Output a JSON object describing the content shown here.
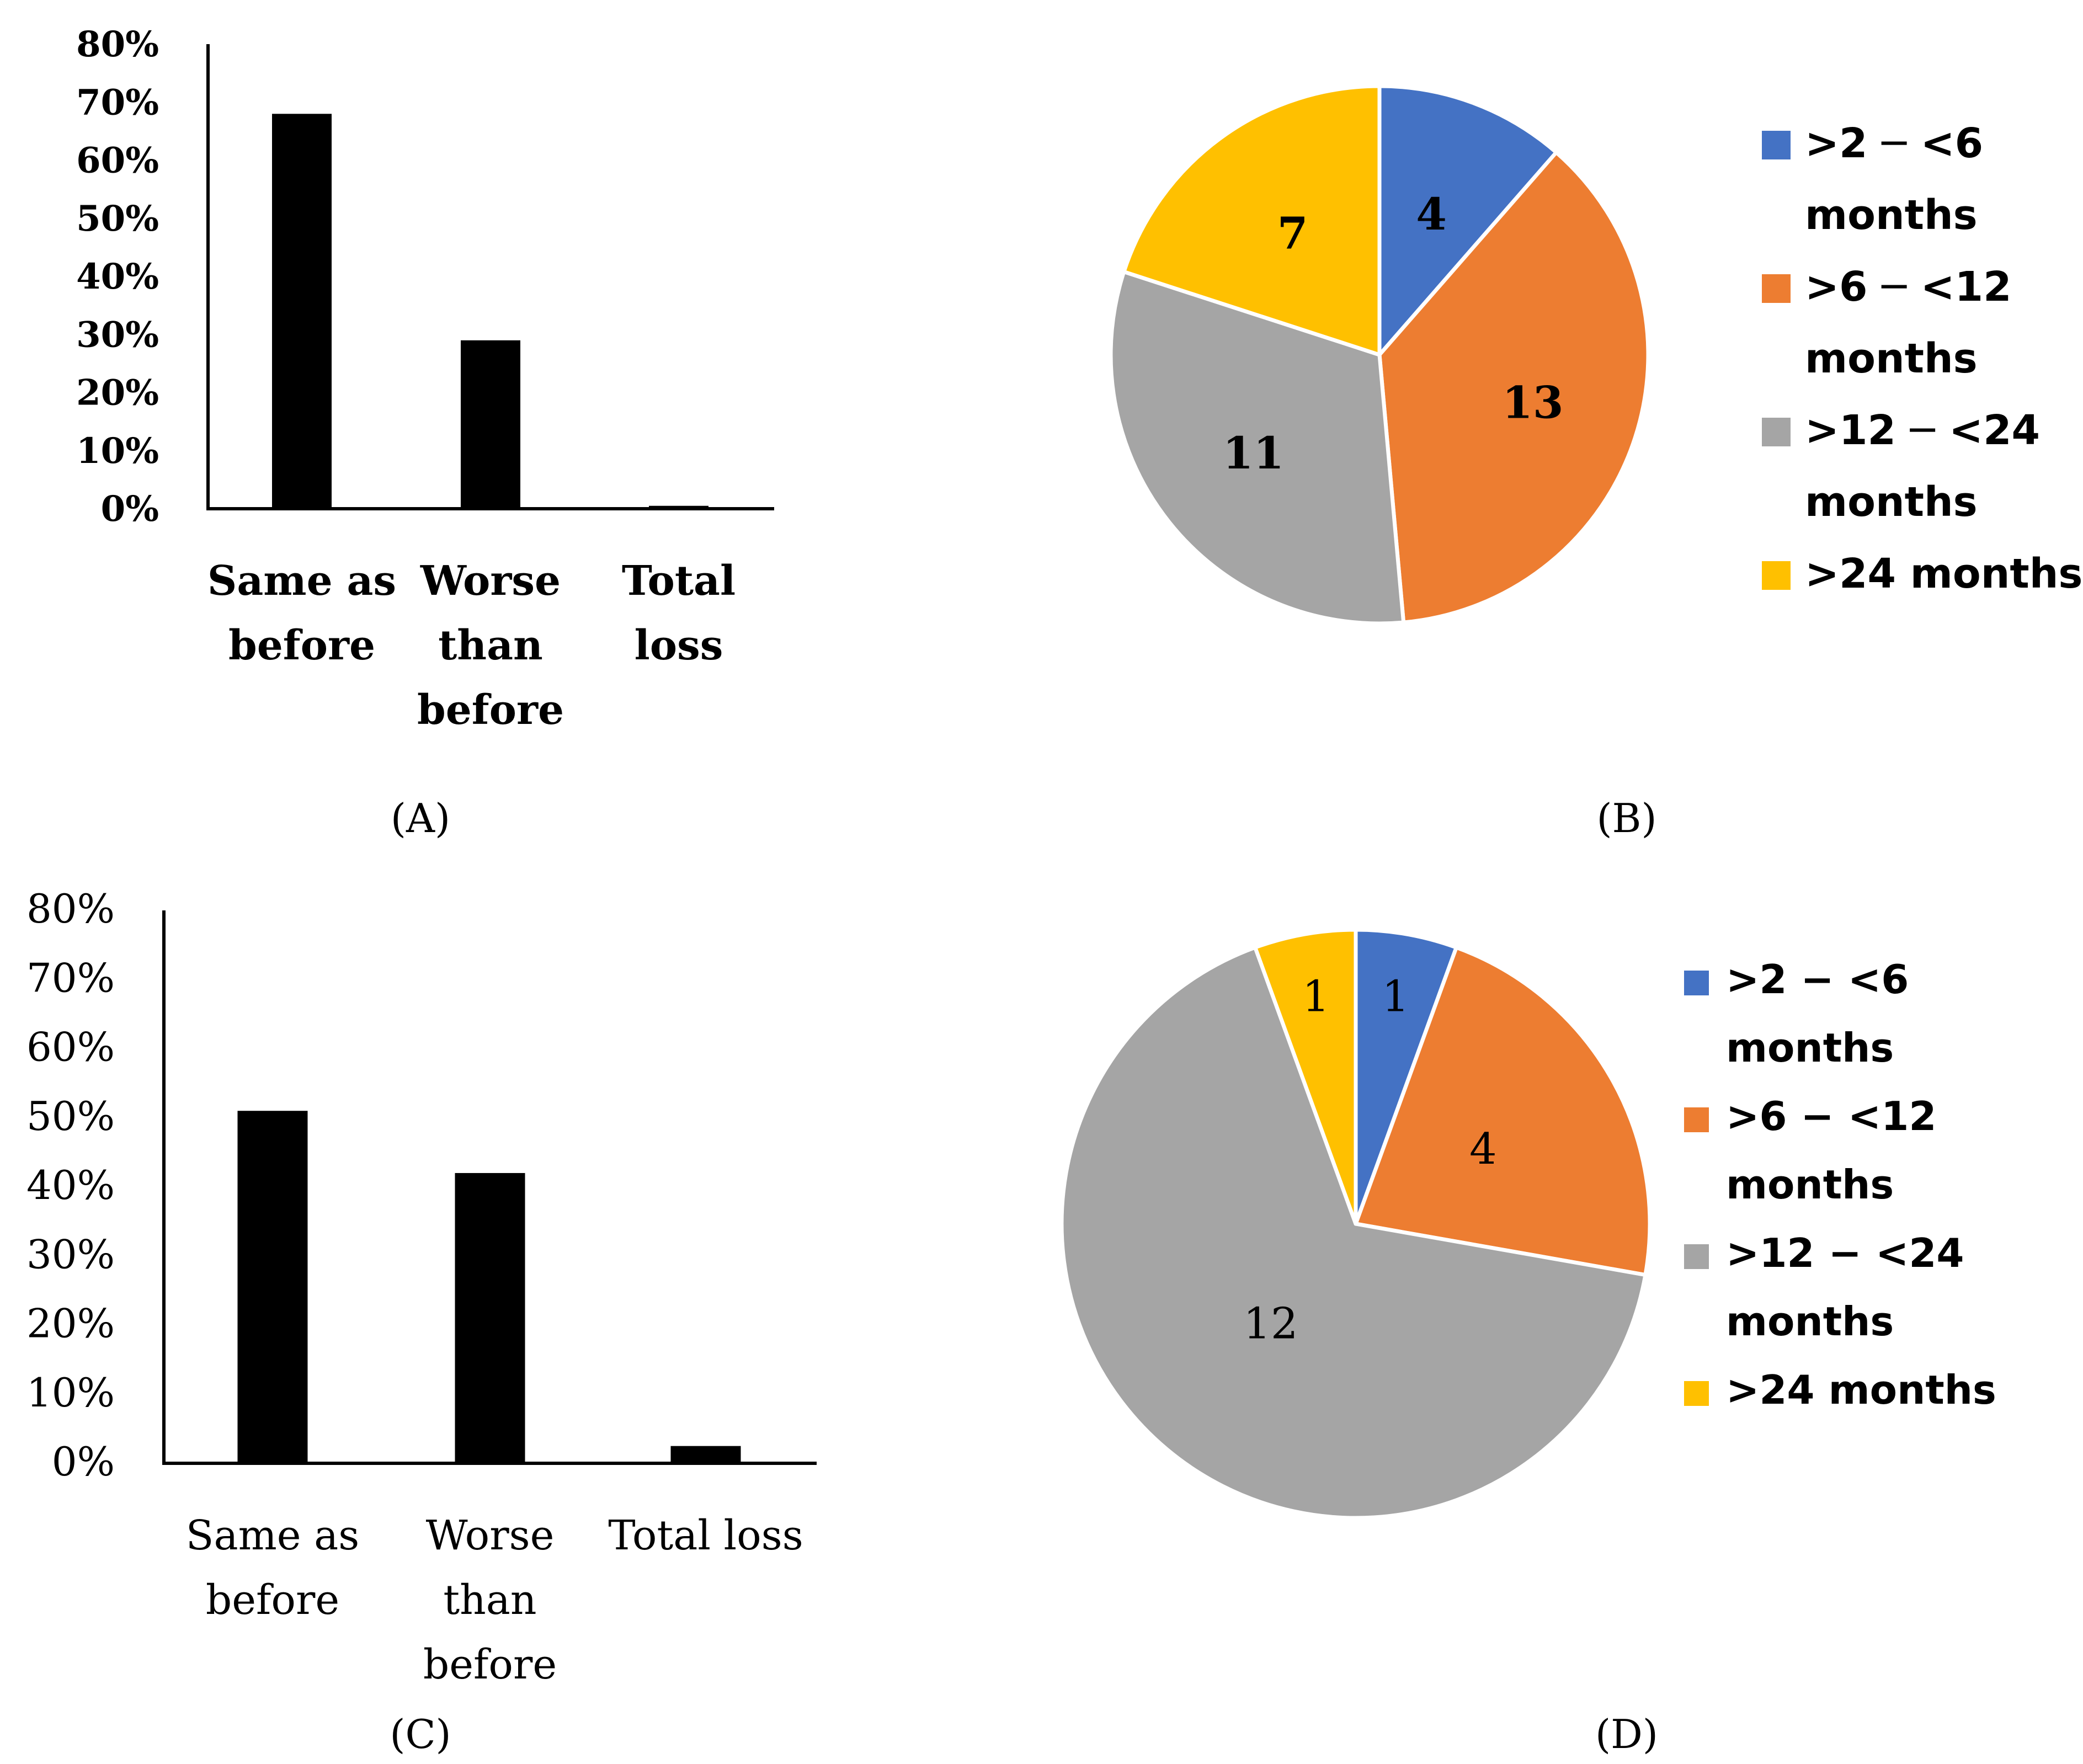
{
  "figure": {
    "panels": [
      {
        "label": "(A)"
      },
      {
        "label": "(B)"
      },
      {
        "label": "(C)"
      },
      {
        "label": "(D)"
      }
    ]
  },
  "colors": {
    "bar": "#000000",
    "axis": "#000000",
    "slice_border": "#ffffff",
    "slices": [
      "#4472c4",
      "#ed7d31",
      "#a5a5a5",
      "#ffc000"
    ]
  },
  "chart_data": [
    {
      "panel": "A",
      "type": "bar",
      "categories": [
        [
          "Same as",
          "before"
        ],
        [
          "Worse",
          "than",
          "before"
        ],
        [
          "Total",
          "loss"
        ]
      ],
      "values": [
        0.68,
        0.29,
        0.005
      ],
      "title": "",
      "xlabel": "",
      "ylabel": "",
      "ylim": [
        0,
        0.8
      ],
      "yticks": [
        "80%",
        "70%",
        "60%",
        "50%",
        "40%",
        "30%",
        "20%",
        "10%",
        "0%"
      ],
      "tick_values": [
        0.8,
        0.7,
        0.6,
        0.5,
        0.4,
        0.3,
        0.2,
        0.1,
        0.0
      ],
      "label_weight": "bold",
      "grid": false
    },
    {
      "panel": "B",
      "type": "pie",
      "labels": [
        ">2 ─ <6 months",
        ">6 ─ <12 months",
        ">12 ─ <24 months",
        ">24 months"
      ],
      "legend_lines": [
        [
          ">2 ─ <6",
          "months"
        ],
        [
          ">6 ─ <12",
          "months"
        ],
        [
          ">12 ─ <24",
          "months"
        ],
        [
          ">24 months"
        ]
      ],
      "values": [
        4,
        13,
        11,
        7
      ],
      "data_labels": [
        "4",
        "13",
        "11",
        "7"
      ],
      "label_weight": "bold",
      "legend": "right"
    },
    {
      "panel": "C",
      "type": "bar",
      "categories": [
        [
          "Same as",
          "before"
        ],
        [
          "Worse",
          "than",
          "before"
        ],
        [
          "Total loss"
        ]
      ],
      "values": [
        0.51,
        0.42,
        0.025
      ],
      "title": "",
      "xlabel": "",
      "ylabel": "",
      "ylim": [
        0,
        0.8
      ],
      "yticks": [
        "80%",
        "70%",
        "60%",
        "50%",
        "40%",
        "30%",
        "20%",
        "10%",
        "0%"
      ],
      "tick_values": [
        0.8,
        0.7,
        0.6,
        0.5,
        0.4,
        0.3,
        0.2,
        0.1,
        0.0
      ],
      "label_weight": "normal",
      "grid": false
    },
    {
      "panel": "D",
      "type": "pie",
      "labels": [
        ">2 − <6 months",
        ">6 − <12 months",
        ">12 − <24 months",
        ">24 months"
      ],
      "legend_lines": [
        [
          ">2 − <6",
          "months"
        ],
        [
          ">6 − <12",
          "months"
        ],
        [
          ">12 − <24",
          "months"
        ],
        [
          ">24 months"
        ]
      ],
      "values": [
        1,
        4,
        12,
        1
      ],
      "data_labels": [
        "1",
        "4",
        "12",
        "1"
      ],
      "label_weight": "normal",
      "legend": "right"
    }
  ]
}
